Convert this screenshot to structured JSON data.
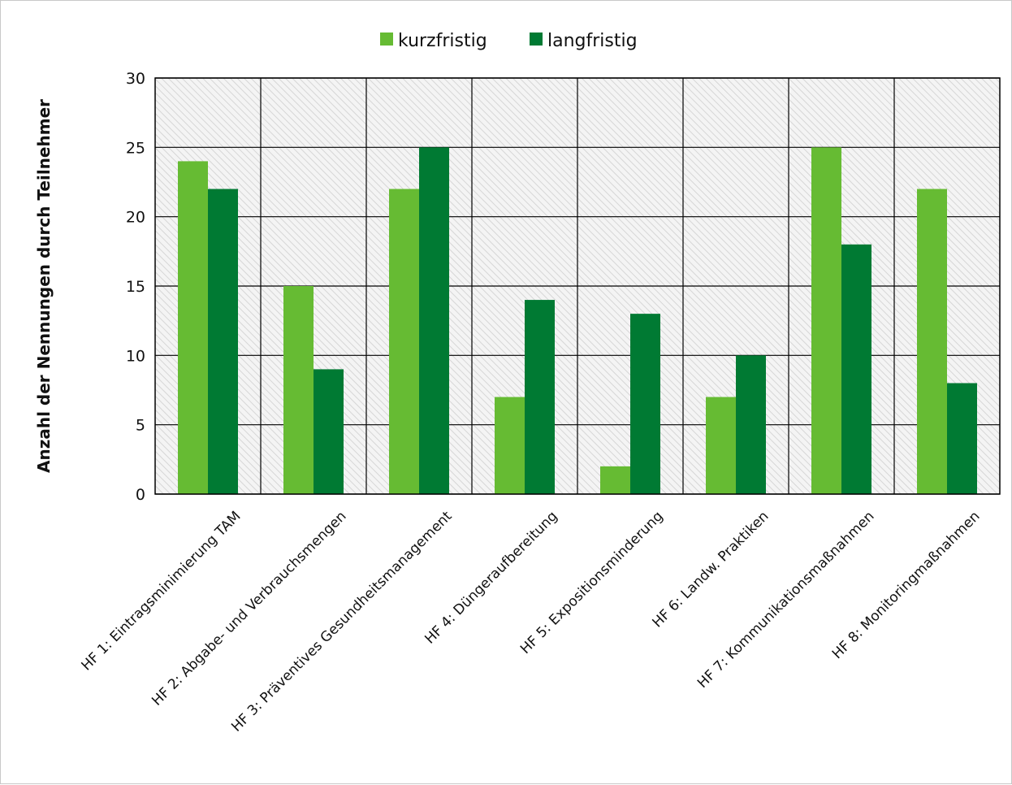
{
  "chart_data": {
    "type": "bar",
    "title": "",
    "xlabel": "",
    "ylabel": "Anzahl der Nennungen durch Teilnehmer",
    "ylim": [
      0,
      30
    ],
    "yticks": [
      0,
      5,
      10,
      15,
      20,
      25,
      30
    ],
    "grid": true,
    "legend_position": "top",
    "categories": [
      "HF 1: Eintragsminimierung TAM",
      "HF 2: Abgabe- und Verbrauchsmengen",
      "HF 3: Präventives Gesundheitsmanagement",
      "HF 4: Düngeraufbereitung",
      "HF 5: Expositionsminderung",
      "HF 6: Landw. Praktiken",
      "HF 7: Kommunikationsmaßnahmen",
      "HF 8: Monitoringmaßnahmen"
    ],
    "series": [
      {
        "name": "kurzfristig",
        "color": "#66bb33",
        "values": [
          24,
          15,
          22,
          7,
          2,
          7,
          25,
          22
        ]
      },
      {
        "name": "langfristig",
        "color": "#007a33",
        "values": [
          22,
          9,
          25,
          14,
          13,
          10,
          18,
          8
        ]
      }
    ]
  }
}
